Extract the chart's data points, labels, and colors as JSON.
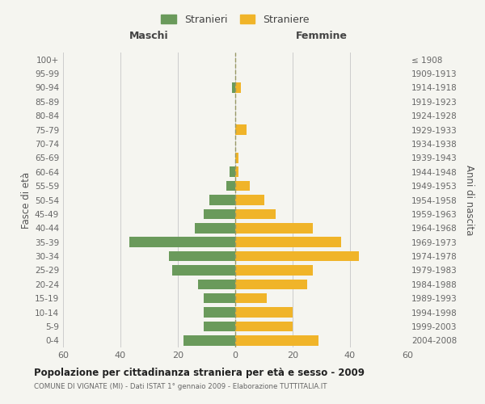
{
  "age_groups": [
    "0-4",
    "5-9",
    "10-14",
    "15-19",
    "20-24",
    "25-29",
    "30-34",
    "35-39",
    "40-44",
    "45-49",
    "50-54",
    "55-59",
    "60-64",
    "65-69",
    "70-74",
    "75-79",
    "80-84",
    "85-89",
    "90-94",
    "95-99",
    "100+"
  ],
  "birth_years": [
    "2004-2008",
    "1999-2003",
    "1994-1998",
    "1989-1993",
    "1984-1988",
    "1979-1983",
    "1974-1978",
    "1969-1973",
    "1964-1968",
    "1959-1963",
    "1954-1958",
    "1949-1953",
    "1944-1948",
    "1939-1943",
    "1934-1938",
    "1929-1933",
    "1924-1928",
    "1919-1923",
    "1914-1918",
    "1909-1913",
    "≤ 1908"
  ],
  "males": [
    18,
    11,
    11,
    11,
    13,
    22,
    23,
    37,
    14,
    11,
    9,
    3,
    2,
    0,
    0,
    0,
    0,
    0,
    1,
    0,
    0
  ],
  "females": [
    29,
    20,
    20,
    11,
    25,
    27,
    43,
    37,
    27,
    14,
    10,
    5,
    1,
    1,
    0,
    4,
    0,
    0,
    2,
    0,
    0
  ],
  "male_color": "#6a9a5b",
  "female_color": "#f0b429",
  "background_color": "#f5f5f0",
  "grid_color": "#cccccc",
  "title": "Popolazione per cittadinanza straniera per età e sesso - 2009",
  "subtitle": "COMUNE DI VIGNATE (MI) - Dati ISTAT 1° gennaio 2009 - Elaborazione TUTTITALIA.IT",
  "xlabel_left": "Maschi",
  "xlabel_right": "Femmine",
  "ylabel_left": "Fasce di età",
  "ylabel_right": "Anni di nascita",
  "xlim": 60,
  "legend_labels": [
    "Stranieri",
    "Straniere"
  ]
}
